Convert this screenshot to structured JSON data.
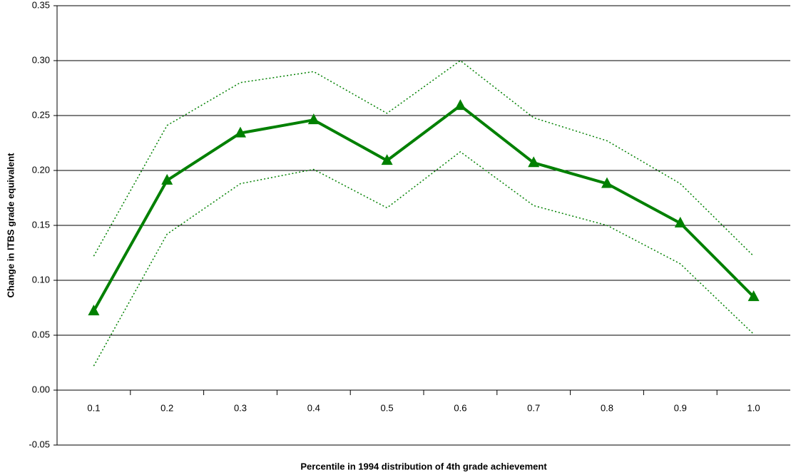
{
  "chart_data": {
    "type": "line",
    "x_label": "Percentile in 1994 distribution of 4th grade achievement",
    "y_label": "Change in ITBS grade equivalent",
    "categories": [
      "0.1",
      "0.2",
      "0.3",
      "0.4",
      "0.5",
      "0.6",
      "0.7",
      "0.8",
      "0.9",
      "1.0"
    ],
    "series": [
      {
        "color": "#008000",
        "line_style": "dotted",
        "values": [
          0.122,
          0.241,
          0.28,
          0.29,
          0.252,
          0.3,
          0.248,
          0.227,
          0.188,
          0.122
        ]
      },
      {
        "color": "#008000",
        "line_style": "solid",
        "marker": "triangle",
        "values": [
          0.072,
          0.191,
          0.234,
          0.246,
          0.209,
          0.259,
          0.207,
          0.188,
          0.152,
          0.085
        ]
      },
      {
        "color": "#008000",
        "line_style": "dotted",
        "values": [
          0.022,
          0.142,
          0.188,
          0.201,
          0.166,
          0.217,
          0.168,
          0.15,
          0.115,
          0.051
        ]
      }
    ],
    "ylim": [
      -0.05,
      0.35
    ],
    "yticks": [
      -0.05,
      {
        "value": 0,
        "label": "0.00"
      },
      0.05,
      {
        "value": 0.1,
        "label": "0.10"
      },
      0.15,
      {
        "value": 0.2,
        "label": "0.20"
      },
      0.25,
      {
        "value": 0.3,
        "label": "0.30"
      },
      0.35
    ],
    "grid": true
  }
}
